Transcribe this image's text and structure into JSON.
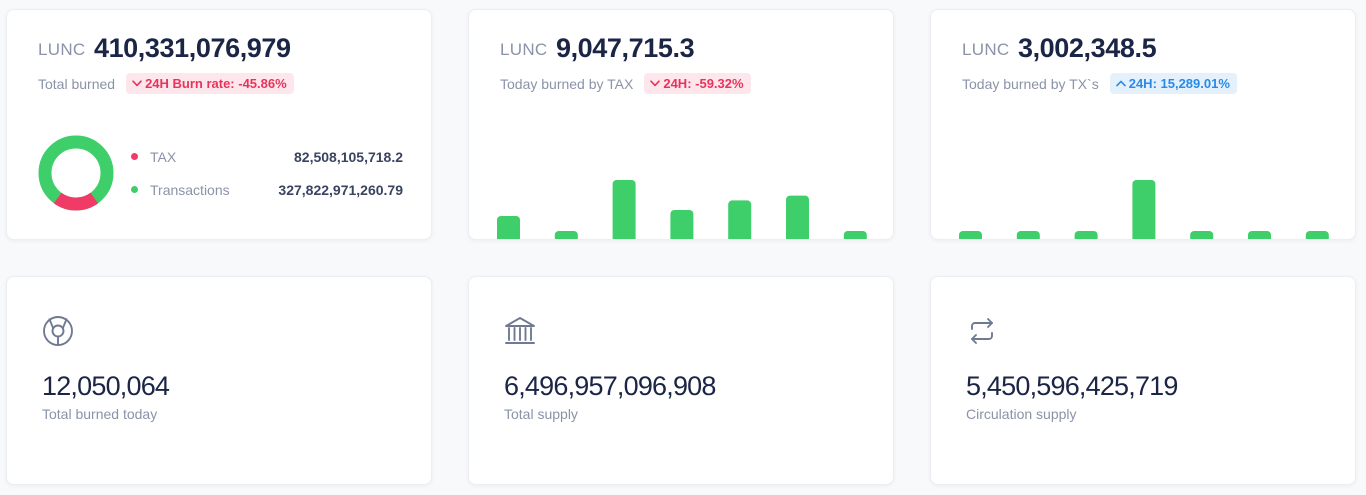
{
  "colors": {
    "green": "#3ecf6a",
    "red": "#ef3b66",
    "text_dark": "#1b2545",
    "text_muted": "#8a93a7",
    "badge_down_bg": "#fde7ec",
    "badge_down_fg": "#e8345d",
    "badge_up_bg": "#e4f1fd",
    "badge_up_fg": "#2a8ae6"
  },
  "total_burned": {
    "unit": "LUNC",
    "value": "410,331,076,979",
    "label": "Total burned",
    "badge": {
      "arrow": "down",
      "icon": "chevron-down-icon",
      "text": "24H Burn rate: -45.86%"
    },
    "breakdown": {
      "items": [
        {
          "label": "TAX",
          "value": "82,508,105,718.2",
          "color": "#ef3b66",
          "share": 0.201
        },
        {
          "label": "Transactions",
          "value": "327,822,971,260.79",
          "color": "#3ecf6a",
          "share": 0.799
        }
      ]
    }
  },
  "tax_burned": {
    "unit": "LUNC",
    "value": "9,047,715.3",
    "label": "Today burned by TAX",
    "badge": {
      "arrow": "down",
      "icon": "chevron-down-icon",
      "text": "24H: -59.32%"
    },
    "chart_data": {
      "type": "bar",
      "values": [
        0.4,
        0.02,
        1.0,
        0.5,
        0.66,
        0.74,
        0.1
      ]
    }
  },
  "tx_burned": {
    "unit": "LUNC",
    "value": "3,002,348.5",
    "label": "Today burned by TX`s",
    "badge": {
      "arrow": "up",
      "icon": "chevron-up-icon",
      "text": "24H: 15,289.01%"
    },
    "chart_data": {
      "type": "bar",
      "values": [
        0.1,
        0.1,
        0.1,
        1.0,
        0.1,
        0.1,
        0.1
      ]
    }
  },
  "stats": [
    {
      "icon": "burn-cycle-icon",
      "value": "12,050,064",
      "label": "Total burned today"
    },
    {
      "icon": "bank-icon",
      "value": "6,496,957,096,908",
      "label": "Total supply"
    },
    {
      "icon": "exchange-arrows-icon",
      "value": "5,450,596,425,719",
      "label": "Circulation supply"
    }
  ]
}
